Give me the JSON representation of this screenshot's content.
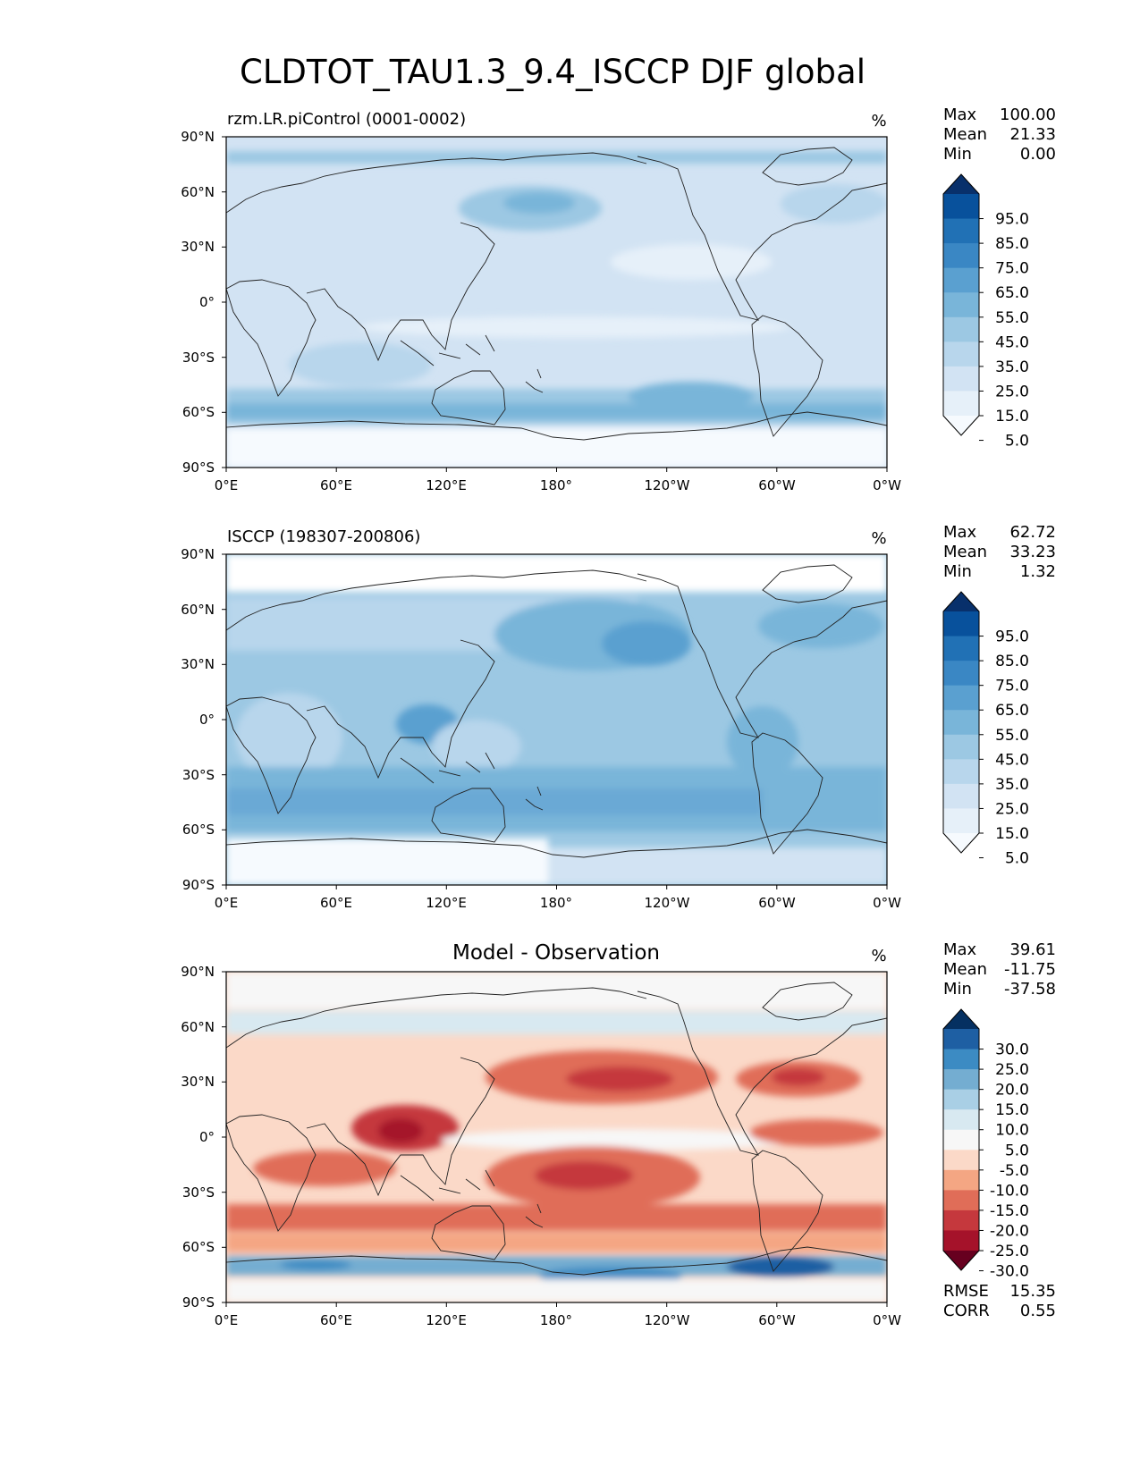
{
  "figure": {
    "title": "CLDTOT_TAU1.3_9.4_ISCCP DJF global"
  },
  "chart_data": [
    {
      "type": "heatmap",
      "id": "model",
      "title_left": "rzm.LR.piControl (0001-0002)",
      "title_center": "",
      "units": "%",
      "colormap": "blues",
      "x_ticks": [
        "0°E",
        "60°E",
        "120°E",
        "180°",
        "120°W",
        "60°W",
        "0°W"
      ],
      "y_ticks": [
        "90°N",
        "60°N",
        "30°N",
        "0°",
        "30°S",
        "60°S",
        "90°S"
      ],
      "xlim": [
        0,
        360
      ],
      "ylim": [
        -90,
        90
      ],
      "stats": [
        {
          "label": "Max",
          "value": "100.00"
        },
        {
          "label": "Mean",
          "value": "21.33"
        },
        {
          "label": "Min",
          "value": "0.00"
        }
      ],
      "colorbar": {
        "labels": [
          "95.0",
          "85.0",
          "75.0",
          "65.0",
          "55.0",
          "45.0",
          "35.0",
          "25.0",
          "15.0",
          "5.0"
        ],
        "colors": [
          "#08306b",
          "#08519c",
          "#2171b5",
          "#3a87c4",
          "#5aa0d0",
          "#79b5d9",
          "#9cc8e3",
          "#b8d6ec",
          "#d2e3f3",
          "#e6f0f9",
          "#f6fafe"
        ]
      },
      "bottom_stats": []
    },
    {
      "type": "heatmap",
      "id": "obs",
      "title_left": "ISCCP (198307-200806)",
      "title_center": "",
      "units": "%",
      "colormap": "blues",
      "x_ticks": [
        "0°E",
        "60°E",
        "120°E",
        "180°",
        "120°W",
        "60°W",
        "0°W"
      ],
      "y_ticks": [
        "90°N",
        "60°N",
        "30°N",
        "0°",
        "30°S",
        "60°S",
        "90°S"
      ],
      "xlim": [
        0,
        360
      ],
      "ylim": [
        -90,
        90
      ],
      "stats": [
        {
          "label": "Max",
          "value": "62.72"
        },
        {
          "label": "Mean",
          "value": "33.23"
        },
        {
          "label": "Min",
          "value": "1.32"
        }
      ],
      "colorbar": {
        "labels": [
          "95.0",
          "85.0",
          "75.0",
          "65.0",
          "55.0",
          "45.0",
          "35.0",
          "25.0",
          "15.0",
          "5.0"
        ],
        "colors": [
          "#08306b",
          "#08519c",
          "#2171b5",
          "#3a87c4",
          "#5aa0d0",
          "#79b5d9",
          "#9cc8e3",
          "#b8d6ec",
          "#d2e3f3",
          "#e6f0f9",
          "#f6fafe"
        ]
      },
      "bottom_stats": []
    },
    {
      "type": "heatmap",
      "id": "diff",
      "title_left": "",
      "title_center": "Model - Observation",
      "units": "%",
      "colormap": "red-blue diverging",
      "x_ticks": [
        "0°E",
        "60°E",
        "120°E",
        "180°",
        "120°W",
        "60°W",
        "0°W"
      ],
      "y_ticks": [
        "90°N",
        "60°N",
        "30°N",
        "0°",
        "30°S",
        "60°S",
        "90°S"
      ],
      "xlim": [
        0,
        360
      ],
      "ylim": [
        -90,
        90
      ],
      "stats": [
        {
          "label": "Max",
          "value": "39.61"
        },
        {
          "label": "Mean",
          "value": "-11.75"
        },
        {
          "label": "Min",
          "value": "-37.58"
        }
      ],
      "colorbar": {
        "labels": [
          "30.0",
          "25.0",
          "20.0",
          "15.0",
          "10.0",
          "5.0",
          "-5.0",
          "-10.0",
          "-15.0",
          "-20.0",
          "-25.0",
          "-30.0"
        ],
        "colors": [
          "#053061",
          "#1e5fa3",
          "#3c8bc3",
          "#74add1",
          "#a9cfe5",
          "#d8e9f1",
          "#f7f7f7",
          "#fbd9c8",
          "#f4a683",
          "#e06d58",
          "#c5383d",
          "#a5122a",
          "#67001f"
        ]
      },
      "bottom_stats": [
        {
          "label": "RMSE",
          "value": "15.35"
        },
        {
          "label": "CORR",
          "value": "0.55"
        }
      ]
    }
  ]
}
